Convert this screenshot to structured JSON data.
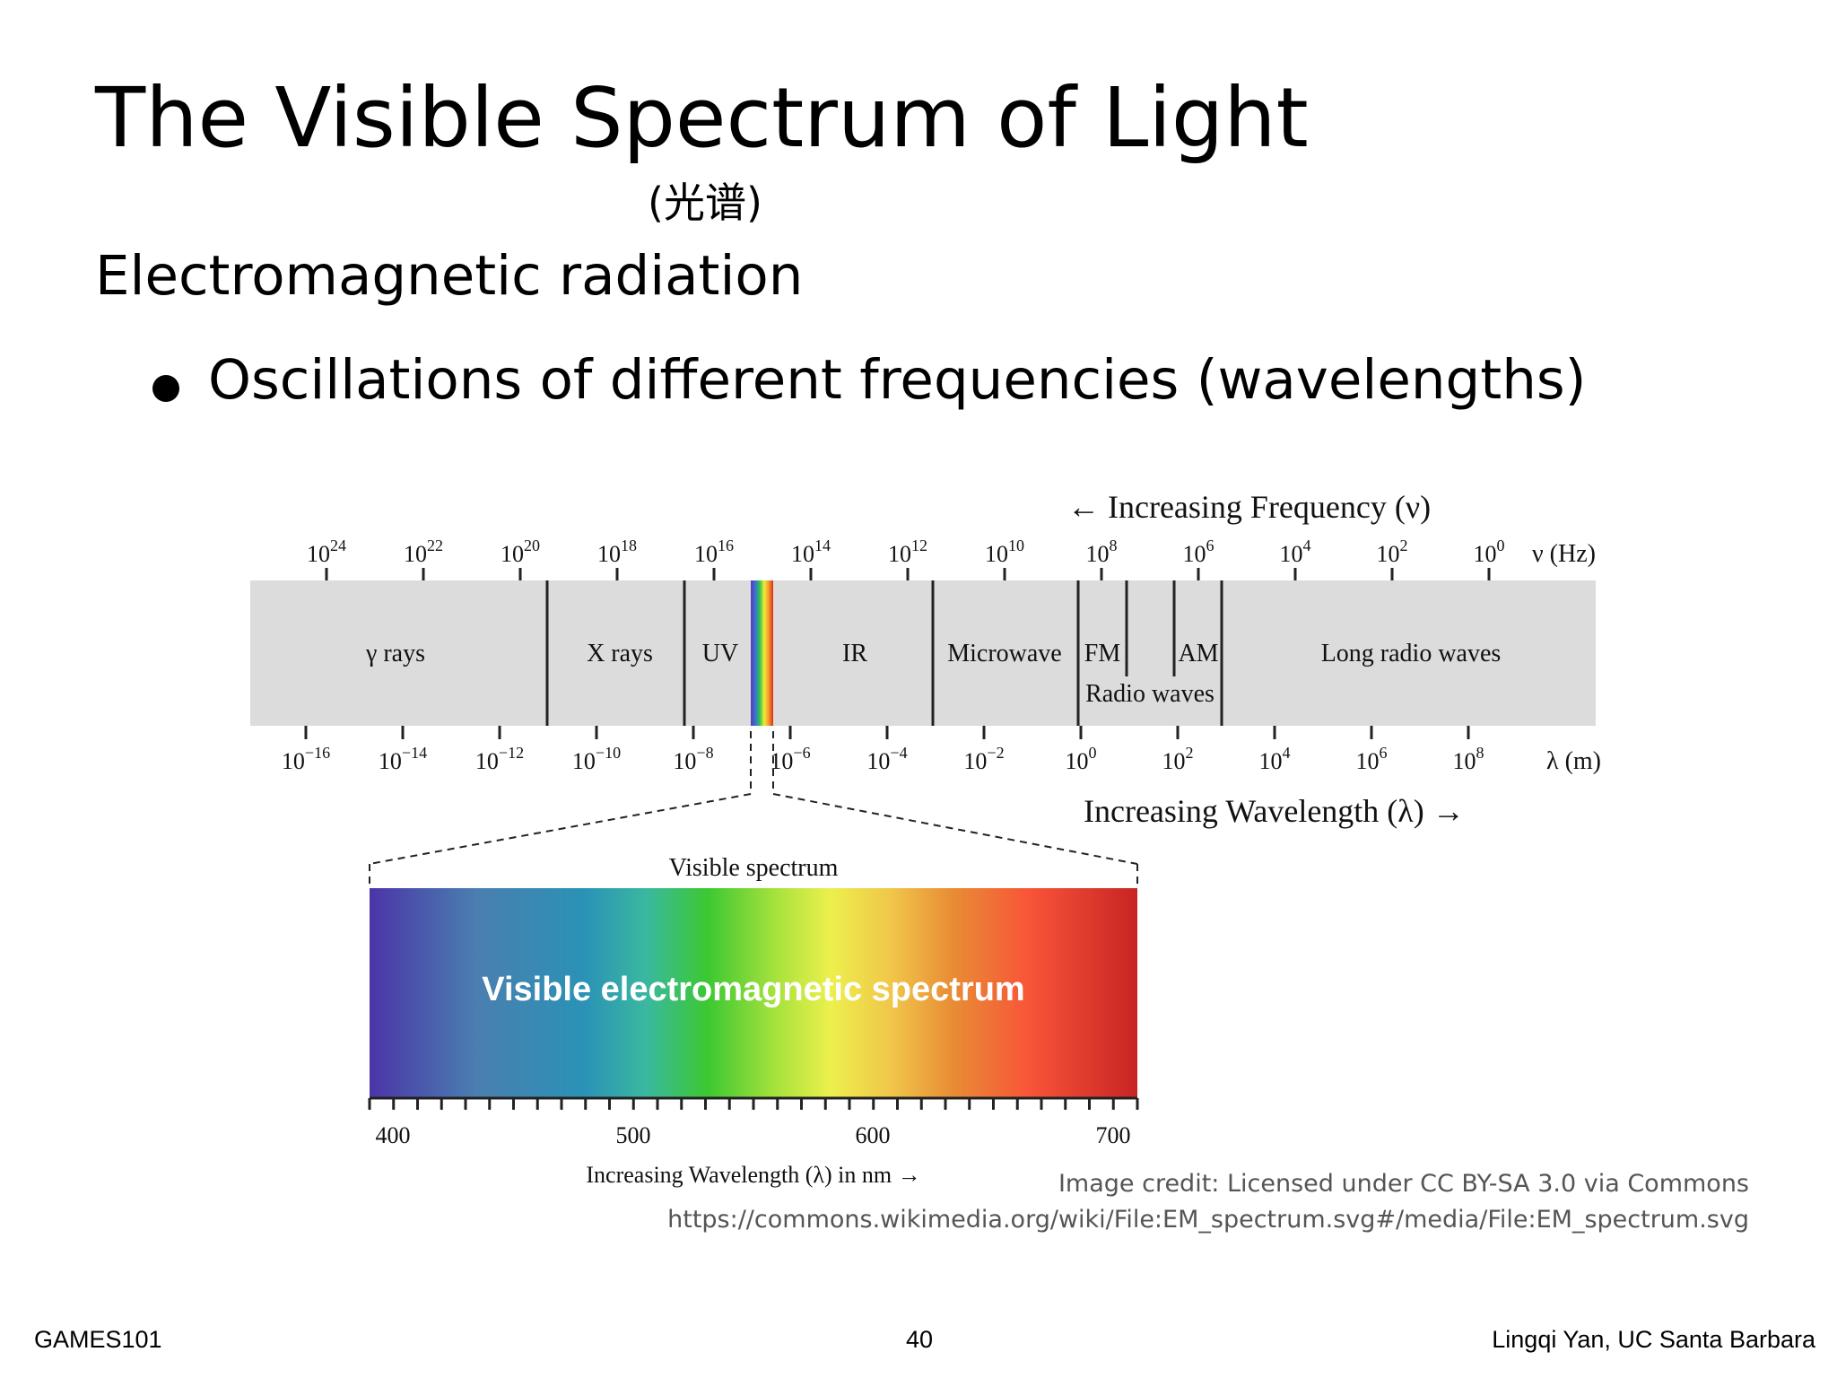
{
  "slide": {
    "title": "The Visible Spectrum of Light",
    "subtitle_cn": "(光谱)",
    "heading": "Electromagnetic radiation",
    "bullet": "Oscillations of different frequencies (wavelengths)"
  },
  "diagram": {
    "frequency_arrow_label": "← Increasing Frequency (ν)",
    "frequency_unit": "ν (Hz)",
    "frequency_ticks": [
      {
        "base": "10",
        "exp": "24"
      },
      {
        "base": "10",
        "exp": "22"
      },
      {
        "base": "10",
        "exp": "20"
      },
      {
        "base": "10",
        "exp": "18"
      },
      {
        "base": "10",
        "exp": "16"
      },
      {
        "base": "10",
        "exp": "14"
      },
      {
        "base": "10",
        "exp": "12"
      },
      {
        "base": "10",
        "exp": "10"
      },
      {
        "base": "10",
        "exp": "8"
      },
      {
        "base": "10",
        "exp": "6"
      },
      {
        "base": "10",
        "exp": "4"
      },
      {
        "base": "10",
        "exp": "2"
      },
      {
        "base": "10",
        "exp": "0"
      }
    ],
    "wavelength_unit": "λ (m)",
    "wavelength_ticks": [
      {
        "base": "10",
        "exp": "−16"
      },
      {
        "base": "10",
        "exp": "−14"
      },
      {
        "base": "10",
        "exp": "−12"
      },
      {
        "base": "10",
        "exp": "−10"
      },
      {
        "base": "10",
        "exp": "−8"
      },
      {
        "base": "10",
        "exp": "−6"
      },
      {
        "base": "10",
        "exp": "−4"
      },
      {
        "base": "10",
        "exp": "−2"
      },
      {
        "base": "10",
        "exp": "0"
      },
      {
        "base": "10",
        "exp": "2"
      },
      {
        "base": "10",
        "exp": "4"
      },
      {
        "base": "10",
        "exp": "6"
      },
      {
        "base": "10",
        "exp": "8"
      }
    ],
    "wavelength_arrow_label": "Increasing Wavelength (λ) →",
    "bands": [
      "γ rays",
      "X rays",
      "UV",
      "IR",
      "Microwave",
      "FM",
      "AM",
      "Radio waves",
      "Long radio waves"
    ],
    "band_color": "#dcdcdc",
    "visible_spectrum_title": "Visible spectrum",
    "visible_spectrum_overlay": "Visible electromagnetic spectrum",
    "nm_ticks": [
      "400",
      "500",
      "600",
      "700"
    ],
    "nm_axis_label": "Increasing Wavelength (λ) in nm →"
  },
  "credit": {
    "line1": "Image credit: Licensed under CC BY-SA 3.0 via Commons",
    "line2": "https://commons.wikimedia.org/wiki/File:EM_spectrum.svg#/media/File:EM_spectrum.svg"
  },
  "footer": {
    "left": "GAMES101",
    "page": "40",
    "right": "Lingqi Yan, UC Santa Barbara"
  }
}
